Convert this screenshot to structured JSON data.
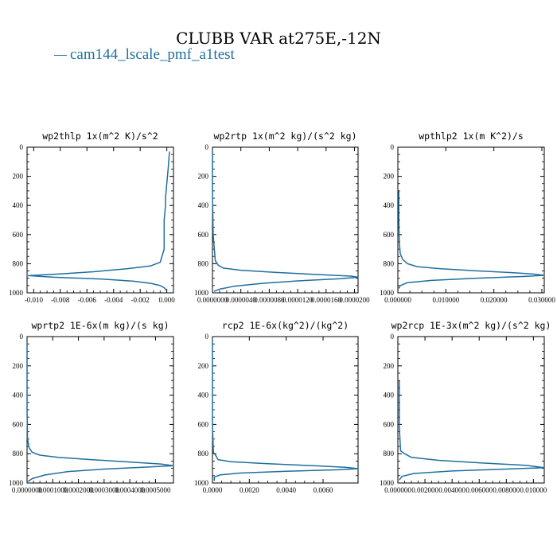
{
  "title": "CLUBB VAR at275E,-12N",
  "legend": {
    "label": "cam144_lscale_pmf_a1test",
    "color": "#1f6f9f"
  },
  "chart_data": [
    {
      "type": "line",
      "title": "wp2thlp  1x(m^2 K)/s^2",
      "xlim": [
        -0.0105,
        0.0005
      ],
      "ylim": [
        1000,
        0
      ],
      "xticks": [
        -0.01,
        -0.008,
        -0.006,
        -0.004,
        -0.002,
        0.0
      ],
      "xtick_labels": [
        "-0.010",
        "-0.008",
        "-0.006",
        "-0.004",
        "-0.002",
        "0.000"
      ],
      "yticks": [
        0,
        200,
        400,
        600,
        800,
        1000
      ],
      "ytick_labels": [
        "0",
        "200",
        "400",
        "600",
        "800",
        "1000"
      ],
      "series": [
        {
          "name": "cam144_lscale_pmf_a1test",
          "x": [
            0.0002,
            0.0001,
            0.0,
            -0.0001,
            -0.0001,
            -0.0002,
            -0.0002,
            -0.0005,
            -0.0012,
            -0.003,
            -0.0055,
            -0.008,
            -0.0104,
            -0.0085,
            -0.005,
            -0.0025,
            -0.0012,
            -0.0005,
            -0.0002,
            0.0
          ],
          "y": [
            30,
            150,
            250,
            350,
            400,
            500,
            700,
            790,
            815,
            835,
            855,
            870,
            882,
            893,
            905,
            920,
            935,
            950,
            965,
            985
          ]
        }
      ]
    },
    {
      "type": "line",
      "title": "wp2rtp  1x(m^2 kg)/(s^2 kg)",
      "xlim": [
        0,
        2.05e-05
      ],
      "ylim": [
        1000,
        0
      ],
      "xticks": [
        0,
        4e-06,
        8e-06,
        1.2e-05,
        1.6e-05,
        2e-05
      ],
      "xtick_labels": [
        "0.0000000",
        "0.0000040",
        "0.0000080",
        "0.0000120",
        "0.0000160",
        "0.0000200"
      ],
      "yticks": [
        0,
        200,
        400,
        600,
        800,
        1000
      ],
      "ytick_labels": [
        "0",
        "200",
        "400",
        "600",
        "800",
        "1000"
      ],
      "series": [
        {
          "name": "cam144_lscale_pmf_a1test",
          "x": [
            0,
            0,
            1e-07,
            4e-07,
            8e-07,
            1.5e-06,
            4e-06,
            9e-06,
            1.5e-05,
            1.95e-05,
            2.05e-05,
            1.8e-05,
            1.2e-05,
            7e-06,
            3e-06,
            1e-06,
            2e-07
          ],
          "y": [
            30,
            300,
            600,
            780,
            810,
            830,
            845,
            860,
            875,
            885,
            893,
            903,
            918,
            935,
            955,
            975,
            990
          ]
        }
      ]
    },
    {
      "type": "line",
      "title": "wpthlp2  1x(m K^2)/s",
      "xlim": [
        0,
        0.0305
      ],
      "ylim": [
        1000,
        0
      ],
      "xticks": [
        0,
        0.01,
        0.02,
        0.03
      ],
      "xtick_labels": [
        "0.000000",
        "0.010000",
        "0.020000",
        "0.030000"
      ],
      "yticks": [
        0,
        200,
        400,
        600,
        800,
        1000
      ],
      "ytick_labels": [
        "0",
        "200",
        "400",
        "600",
        "800",
        "1000"
      ],
      "series": [
        {
          "name": "cam144_lscale_pmf_a1test",
          "x": [
            0.0002,
            0.0002,
            0.0003,
            0.0005,
            0.001,
            0.002,
            0.004,
            0.009,
            0.016,
            0.023,
            0.028,
            0.0305,
            0.026,
            0.016,
            0.007,
            0.002,
            0.0005,
            0.0002
          ],
          "y": [
            300,
            500,
            650,
            730,
            770,
            800,
            820,
            835,
            848,
            860,
            870,
            880,
            888,
            900,
            915,
            930,
            950,
            970
          ]
        }
      ]
    },
    {
      "type": "line",
      "title": "wprtp2  1E-6x(m kg)/(s kg)",
      "xlim": [
        0,
        0.00057
      ],
      "ylim": [
        1000,
        0
      ],
      "xticks": [
        0,
        0.0001,
        0.0002,
        0.0003,
        0.0004,
        0.0005
      ],
      "xtick_labels": [
        "0.0000000",
        "0.0001000",
        "0.0002000",
        "0.0003000",
        "0.0004000",
        "0.0005000"
      ],
      "yticks": [
        0,
        200,
        400,
        600,
        800,
        1000
      ],
      "ytick_labels": [
        "0",
        "200",
        "400",
        "600",
        "800",
        "1000"
      ],
      "series": [
        {
          "name": "cam144_lscale_pmf_a1test",
          "x": [
            0,
            0,
            2e-06,
            8e-06,
            2e-05,
            5e-05,
            0.00012,
            0.00025,
            0.00038,
            0.00052,
            0.00057,
            0.00045,
            0.0003,
            0.00016,
            7e-05,
            2e-05,
            3e-06
          ],
          "y": [
            30,
            500,
            700,
            760,
            790,
            810,
            825,
            840,
            855,
            870,
            882,
            893,
            905,
            922,
            945,
            970,
            990
          ]
        }
      ]
    },
    {
      "type": "line",
      "title": "rcp2  1E-6x(kg^2)/(kg^2)",
      "xlim": [
        0,
        0.0079
      ],
      "ylim": [
        1000,
        0
      ],
      "xticks": [
        0,
        0.002,
        0.004,
        0.006
      ],
      "xtick_labels": [
        "0.0000",
        "0.0020",
        "0.0040",
        "0.0060"
      ],
      "yticks": [
        0,
        200,
        400,
        600,
        800,
        1000
      ],
      "ytick_labels": [
        "0",
        "200",
        "400",
        "600",
        "800",
        "1000"
      ],
      "series": [
        {
          "name": "cam144_lscale_pmf_a1test",
          "x": [
            0,
            0,
            5e-05,
            0.0002,
            0.0003,
            0.001,
            0.003,
            0.0055,
            0.0072,
            0.0079,
            0.0068,
            0.004,
            0.0015,
            0.0004,
            0.0001,
            0.0001
          ],
          "y": [
            30,
            600,
            790,
            815,
            840,
            855,
            868,
            882,
            893,
            902,
            910,
            920,
            932,
            945,
            960,
            985
          ]
        }
      ]
    },
    {
      "type": "line",
      "title": "wp2rcp  1E-3x(m^2 kg)/(s^2 kg)",
      "xlim": [
        0,
        0.0108
      ],
      "ylim": [
        1000,
        0
      ],
      "xticks": [
        0,
        0.002,
        0.004,
        0.006,
        0.008,
        0.01
      ],
      "xtick_labels": [
        "0.000000",
        "0.002000",
        "0.004000",
        "0.006000",
        "0.008000",
        "0.010000"
      ],
      "yticks": [
        0,
        200,
        400,
        600,
        800,
        1000
      ],
      "ytick_labels": [
        "0",
        "200",
        "400",
        "600",
        "800",
        "1000"
      ],
      "series": [
        {
          "name": "cam144_lscale_pmf_a1test",
          "x": [
            0.0001,
            0.0001,
            0.0002,
            0.0005,
            0.001,
            0.003,
            0.006,
            0.0095,
            0.0108,
            0.008,
            0.004,
            0.0012,
            0.0003,
            0.0001
          ],
          "y": [
            300,
            600,
            780,
            800,
            825,
            845,
            862,
            880,
            895,
            905,
            918,
            935,
            955,
            980
          ]
        }
      ]
    }
  ]
}
